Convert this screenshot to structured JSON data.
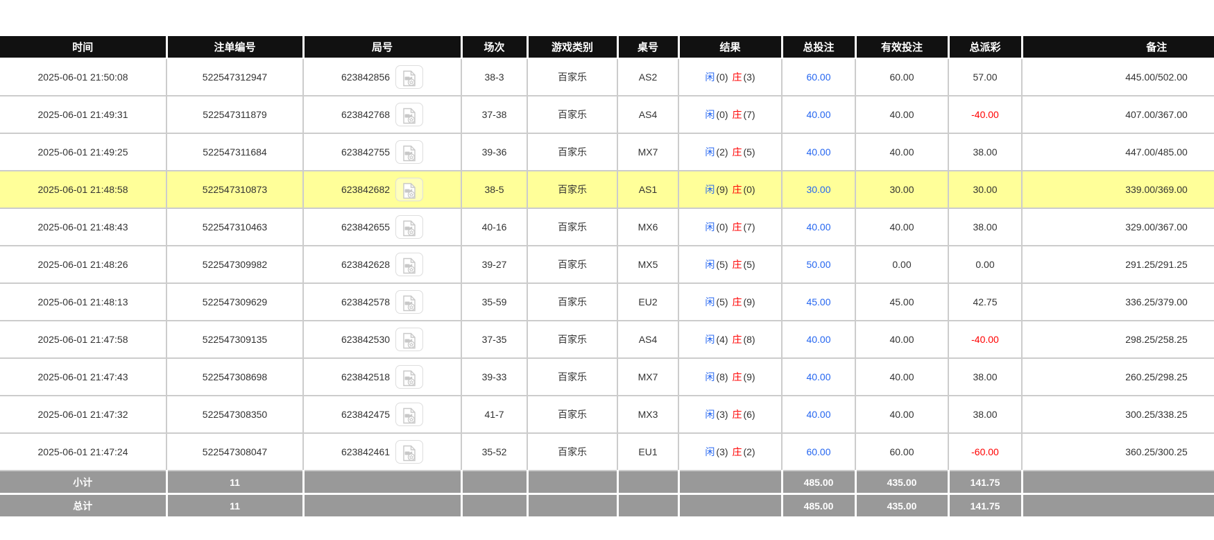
{
  "table": {
    "columns": [
      {
        "key": "time",
        "label": "时间"
      },
      {
        "key": "bet_id",
        "label": "注单编号"
      },
      {
        "key": "round_id",
        "label": "局号"
      },
      {
        "key": "session",
        "label": "场次"
      },
      {
        "key": "game_type",
        "label": "游戏类别"
      },
      {
        "key": "table_no",
        "label": "桌号"
      },
      {
        "key": "result",
        "label": "结果"
      },
      {
        "key": "total_bet",
        "label": "总投注"
      },
      {
        "key": "valid_bet",
        "label": "有效投注"
      },
      {
        "key": "payout",
        "label": "总派彩"
      },
      {
        "key": "remark",
        "label": "备注"
      }
    ],
    "result_labels": {
      "player": "闲",
      "banker": "庄"
    },
    "rows": [
      {
        "time": "2025-06-01 21:50:08",
        "bet_id": "522547312947",
        "round_id": "623842856",
        "session": "38-3",
        "game_type": "百家乐",
        "table_no": "AS2",
        "player_score": "(0)",
        "banker_score": "(3)",
        "total_bet": "60.00",
        "valid_bet": "60.00",
        "payout": "57.00",
        "remark": "445.00/502.00",
        "highlighted": false
      },
      {
        "time": "2025-06-01 21:49:31",
        "bet_id": "522547311879",
        "round_id": "623842768",
        "session": "37-38",
        "game_type": "百家乐",
        "table_no": "AS4",
        "player_score": "(0)",
        "banker_score": "(7)",
        "total_bet": "40.00",
        "valid_bet": "40.00",
        "payout": "-40.00",
        "remark": "407.00/367.00",
        "highlighted": false
      },
      {
        "time": "2025-06-01 21:49:25",
        "bet_id": "522547311684",
        "round_id": "623842755",
        "session": "39-36",
        "game_type": "百家乐",
        "table_no": "MX7",
        "player_score": "(2)",
        "banker_score": "(5)",
        "total_bet": "40.00",
        "valid_bet": "40.00",
        "payout": "38.00",
        "remark": "447.00/485.00",
        "highlighted": false
      },
      {
        "time": "2025-06-01 21:48:58",
        "bet_id": "522547310873",
        "round_id": "623842682",
        "session": "38-5",
        "game_type": "百家乐",
        "table_no": "AS1",
        "player_score": "(9)",
        "banker_score": "(0)",
        "total_bet": "30.00",
        "valid_bet": "30.00",
        "payout": "30.00",
        "remark": "339.00/369.00",
        "highlighted": true
      },
      {
        "time": "2025-06-01 21:48:43",
        "bet_id": "522547310463",
        "round_id": "623842655",
        "session": "40-16",
        "game_type": "百家乐",
        "table_no": "MX6",
        "player_score": "(0)",
        "banker_score": "(7)",
        "total_bet": "40.00",
        "valid_bet": "40.00",
        "payout": "38.00",
        "remark": "329.00/367.00",
        "highlighted": false
      },
      {
        "time": "2025-06-01 21:48:26",
        "bet_id": "522547309982",
        "round_id": "623842628",
        "session": "39-27",
        "game_type": "百家乐",
        "table_no": "MX5",
        "player_score": "(5)",
        "banker_score": "(5)",
        "total_bet": "50.00",
        "valid_bet": "0.00",
        "payout": "0.00",
        "remark": "291.25/291.25",
        "highlighted": false
      },
      {
        "time": "2025-06-01 21:48:13",
        "bet_id": "522547309629",
        "round_id": "623842578",
        "session": "35-59",
        "game_type": "百家乐",
        "table_no": "EU2",
        "player_score": "(5)",
        "banker_score": "(9)",
        "total_bet": "45.00",
        "valid_bet": "45.00",
        "payout": "42.75",
        "remark": "336.25/379.00",
        "highlighted": false
      },
      {
        "time": "2025-06-01 21:47:58",
        "bet_id": "522547309135",
        "round_id": "623842530",
        "session": "37-35",
        "game_type": "百家乐",
        "table_no": "AS4",
        "player_score": "(4)",
        "banker_score": "(8)",
        "total_bet": "40.00",
        "valid_bet": "40.00",
        "payout": "-40.00",
        "remark": "298.25/258.25",
        "highlighted": false
      },
      {
        "time": "2025-06-01 21:47:43",
        "bet_id": "522547308698",
        "round_id": "623842518",
        "session": "39-33",
        "game_type": "百家乐",
        "table_no": "MX7",
        "player_score": "(8)",
        "banker_score": "(9)",
        "total_bet": "40.00",
        "valid_bet": "40.00",
        "payout": "38.00",
        "remark": "260.25/298.25",
        "highlighted": false
      },
      {
        "time": "2025-06-01 21:47:32",
        "bet_id": "522547308350",
        "round_id": "623842475",
        "session": "41-7",
        "game_type": "百家乐",
        "table_no": "MX3",
        "player_score": "(3)",
        "banker_score": "(6)",
        "total_bet": "40.00",
        "valid_bet": "40.00",
        "payout": "38.00",
        "remark": "300.25/338.25",
        "highlighted": false
      },
      {
        "time": "2025-06-01 21:47:24",
        "bet_id": "522547308047",
        "round_id": "623842461",
        "session": "35-52",
        "game_type": "百家乐",
        "table_no": "EU1",
        "player_score": "(3)",
        "banker_score": "(2)",
        "total_bet": "60.00",
        "valid_bet": "60.00",
        "payout": "-60.00",
        "remark": "360.25/300.25",
        "highlighted": false
      }
    ],
    "subtotal": {
      "label": "小计",
      "count": "11",
      "total_bet": "485.00",
      "valid_bet": "435.00",
      "payout": "141.75"
    },
    "total": {
      "label": "总计",
      "count": "11",
      "total_bet": "485.00",
      "valid_bet": "435.00",
      "payout": "141.75"
    }
  },
  "colors": {
    "header_bg": "#111111",
    "header_text": "#ffffff",
    "row_highlight": "#ffff99",
    "bet_amount_blue": "#2566f0",
    "player_blue": "#2566f0",
    "banker_red": "#ff0000",
    "negative_red": "#ff0000",
    "footer_bg": "#999999",
    "border_gray": "#cccccc"
  },
  "icons": {
    "video_replay": "video-file-icon"
  }
}
